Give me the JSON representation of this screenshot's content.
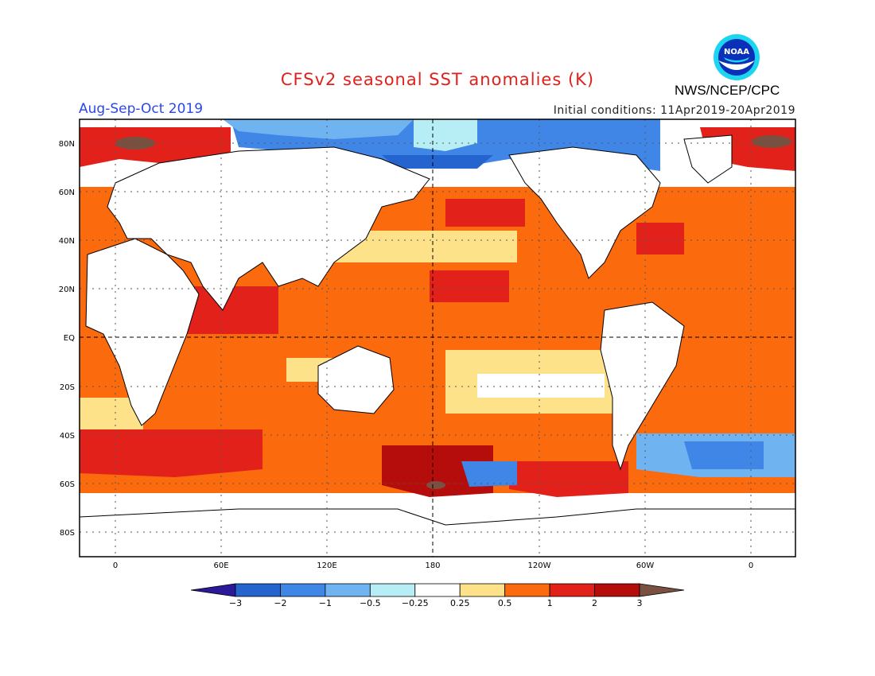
{
  "header": {
    "title": "CFSv2 seasonal SST anomalies (K)",
    "season": "Aug-Sep-Oct 2019",
    "initial_conditions": "Initial conditions: 11Apr2019-20Apr2019",
    "agency": "NWS/NCEP/CPC",
    "logo_text": "NOAA"
  },
  "map": {
    "lat_labels": [
      "80N",
      "60N",
      "40N",
      "20N",
      "EQ",
      "20S",
      "40S",
      "60S",
      "80S"
    ],
    "lon_labels": [
      "0",
      "60E",
      "120E",
      "180",
      "120W",
      "60W",
      "0"
    ],
    "colors": {
      "land": "#ffffff",
      "grid": "#555555",
      "neutral_ocean": "#ffffff"
    }
  },
  "legend": {
    "labels": [
      "-3",
      "-2",
      "-1",
      "-0.5",
      "-0.25",
      "0.25",
      "0.5",
      "1",
      "2",
      "3"
    ],
    "colors": [
      "#2a1a9a",
      "#2563cf",
      "#3f86e6",
      "#6fb3f0",
      "#b7eef5",
      "#ffffff",
      "#fde28a",
      "#fb6a0c",
      "#e2211a",
      "#b50c0c",
      "#7a5040"
    ]
  }
}
